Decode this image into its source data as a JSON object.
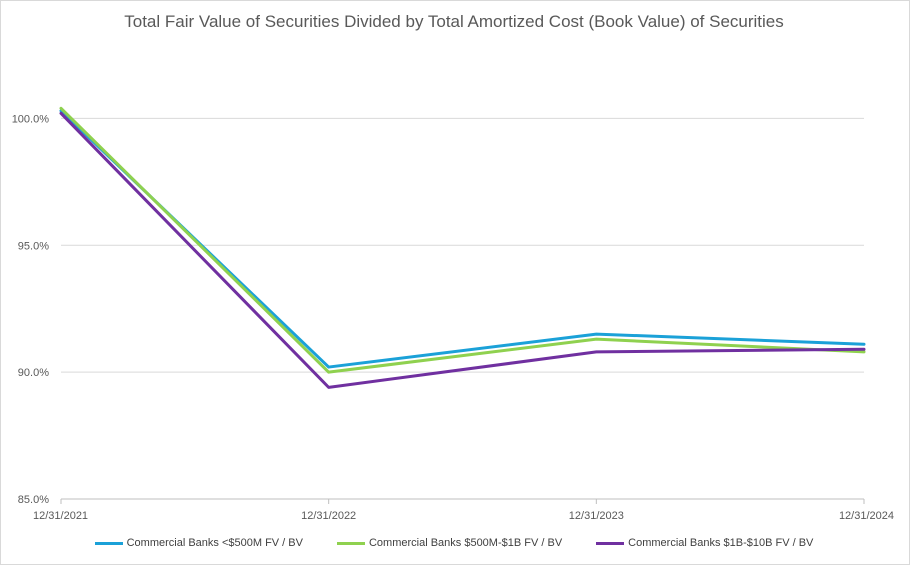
{
  "chart_data": {
    "type": "line",
    "title": "Total Fair Value of Securities Divided by Total Amortized Cost (Book Value) of Securities",
    "x": [
      "12/31/2021",
      "12/31/2022",
      "12/31/2023",
      "12/31/2024"
    ],
    "ylim": [
      85.0,
      102.5
    ],
    "yticks": [
      85.0,
      90.0,
      95.0,
      100.0
    ],
    "ytick_labels": [
      "85.0%",
      "90.0%",
      "95.0%",
      "100.0%"
    ],
    "grid": true,
    "legend_position": "bottom",
    "series": [
      {
        "name": "Commercial Banks <$500M FV / BV",
        "color": "#1ba1d8",
        "values": [
          100.3,
          90.2,
          91.5,
          91.1
        ]
      },
      {
        "name": "Commercial Banks $500M-$1B FV / BV",
        "color": "#8fd14f",
        "values": [
          100.4,
          90.0,
          91.3,
          90.8
        ]
      },
      {
        "name": "Commercial Banks $1B-$10B FV / BV",
        "color": "#7030a0",
        "values": [
          100.2,
          89.4,
          90.8,
          90.9
        ]
      }
    ]
  }
}
